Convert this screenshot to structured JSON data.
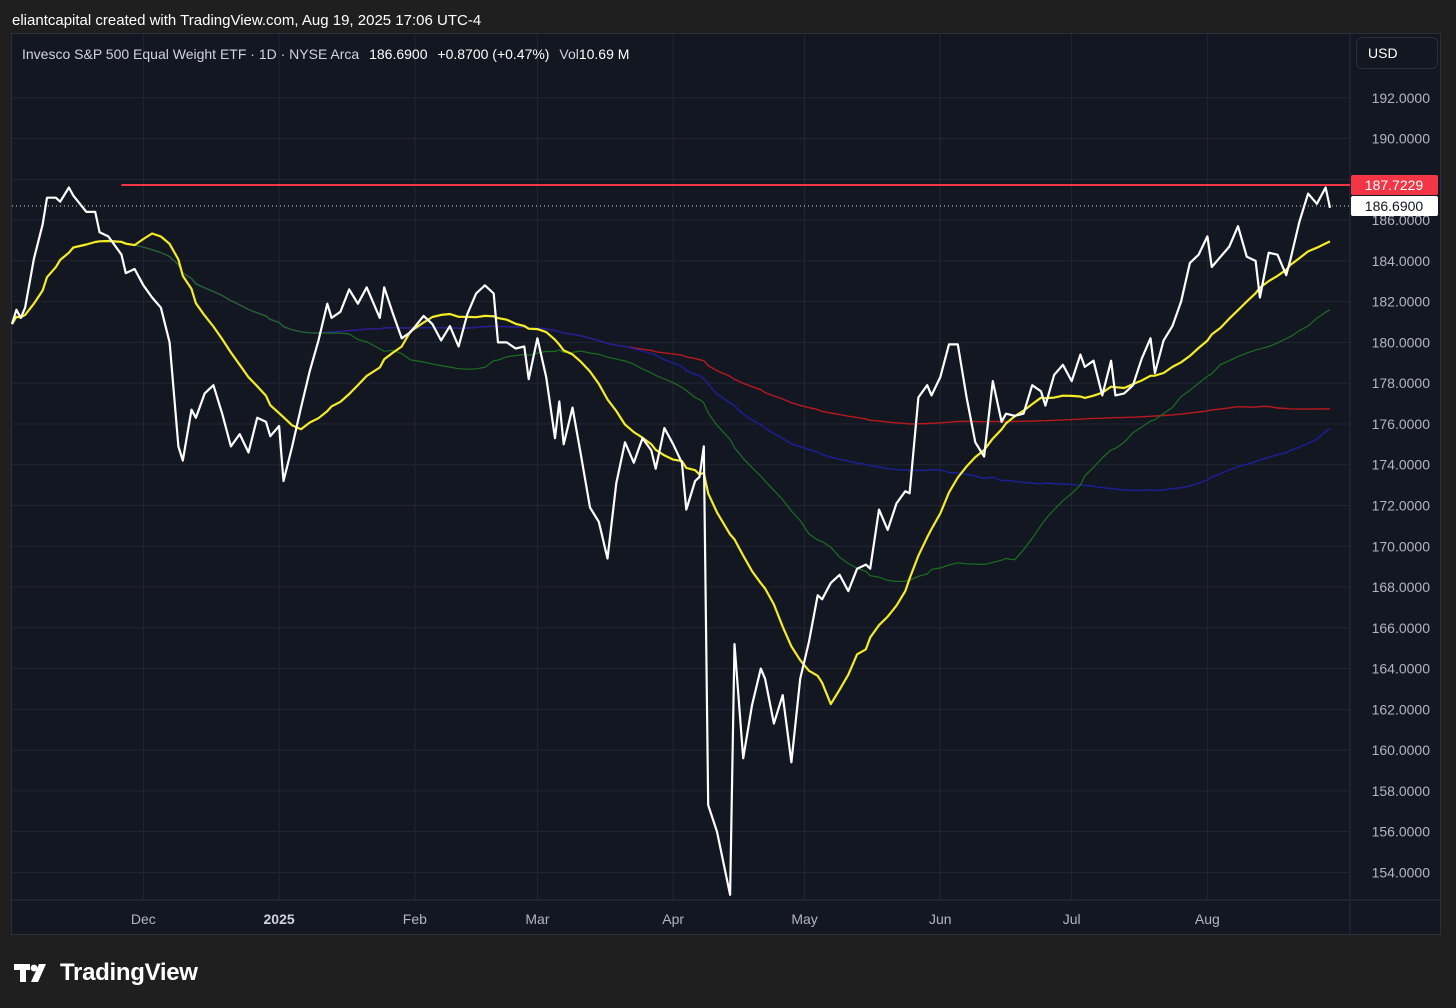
{
  "caption": "eliantcapital created with TradingView.com, Aug 19, 2025 17:06 UTC-4",
  "legend": {
    "symbol": "Invesco S&P 500 Equal Weight ETF · 1D · NYSE Arca",
    "price": "186.6900",
    "change": "+0.8700 (+0.47%)",
    "vol_label": "Vol",
    "vol_value": "10.69 M"
  },
  "currency_button": "USD",
  "brand": "TradingView",
  "colors": {
    "price": "#ffffff",
    "sma20": "#f5ec25",
    "sma50": "#1b6e20",
    "sma100": "#1b1f9a",
    "sma200": "#b8191c",
    "resistance": "#f23645",
    "background": "#131722",
    "grid": "#232632"
  },
  "chart_data": {
    "type": "line",
    "ylim": [
      152.5,
      194.0
    ],
    "y_ticks": [
      "192.0000",
      "190.0000",
      "188.0000",
      "186.0000",
      "184.0000",
      "182.0000",
      "180.0000",
      "178.0000",
      "176.0000",
      "174.0000",
      "172.0000",
      "170.0000",
      "168.0000",
      "166.0000",
      "164.0000",
      "162.0000",
      "160.0000",
      "158.0000",
      "156.0000",
      "154.0000"
    ],
    "x_ticks": [
      {
        "label": "Dec",
        "date": "2024-12-01"
      },
      {
        "label": "2025",
        "date": "2025-01-01",
        "bold": true
      },
      {
        "label": "Feb",
        "date": "2025-02-01"
      },
      {
        "label": "Mar",
        "date": "2025-03-01"
      },
      {
        "label": "Apr",
        "date": "2025-04-01"
      },
      {
        "label": "May",
        "date": "2025-05-01"
      },
      {
        "label": "Jun",
        "date": "2025-06-01"
      },
      {
        "label": "Jul",
        "date": "2025-07-01"
      },
      {
        "label": "Aug",
        "date": "2025-08-01"
      }
    ],
    "xlim": [
      "2024-11-01",
      "2025-08-29"
    ],
    "resistance": {
      "value": 187.7229,
      "label": "187.7229",
      "from": "2024-11-26"
    },
    "last_price": {
      "value": 186.69,
      "label": "186.6900"
    },
    "series": [
      {
        "key": "price",
        "values": [
          [
            "2024-11-01",
            180.9
          ],
          [
            "2024-11-02",
            181.6
          ],
          [
            "2024-11-03",
            181.2
          ],
          [
            "2024-11-04",
            181.7
          ],
          [
            "2024-11-06",
            184.1
          ],
          [
            "2024-11-08",
            185.8
          ],
          [
            "2024-11-09",
            187.1
          ],
          [
            "2024-11-11",
            187.1
          ],
          [
            "2024-11-12",
            186.9
          ],
          [
            "2024-11-14",
            187.6
          ],
          [
            "2024-11-15",
            187.2
          ],
          [
            "2024-11-18",
            186.4
          ],
          [
            "2024-11-20",
            186.4
          ],
          [
            "2024-11-21",
            185.4
          ],
          [
            "2024-11-23",
            185.2
          ],
          [
            "2024-11-26",
            184.3
          ],
          [
            "2024-11-27",
            183.4
          ],
          [
            "2024-11-29",
            183.6
          ],
          [
            "2024-12-01",
            182.8
          ],
          [
            "2024-12-03",
            182.2
          ],
          [
            "2024-12-05",
            181.7
          ],
          [
            "2024-12-07",
            180.0
          ],
          [
            "2024-12-09",
            174.9
          ],
          [
            "2024-12-10",
            174.2
          ],
          [
            "2024-12-12",
            176.7
          ],
          [
            "2024-12-13",
            176.3
          ],
          [
            "2024-12-15",
            177.5
          ],
          [
            "2024-12-17",
            177.9
          ],
          [
            "2024-12-19",
            176.5
          ],
          [
            "2024-12-21",
            174.9
          ],
          [
            "2024-12-23",
            175.5
          ],
          [
            "2024-12-25",
            174.6
          ],
          [
            "2024-12-27",
            176.3
          ],
          [
            "2024-12-29",
            176.1
          ],
          [
            "2024-12-30",
            175.4
          ],
          [
            "2025-01-01",
            175.9
          ],
          [
            "2025-01-02",
            173.2
          ],
          [
            "2025-01-04",
            174.9
          ],
          [
            "2025-01-06",
            176.8
          ],
          [
            "2025-01-08",
            178.6
          ],
          [
            "2025-01-10",
            180.1
          ],
          [
            "2025-01-12",
            181.9
          ],
          [
            "2025-01-13",
            181.2
          ],
          [
            "2025-01-15",
            181.5
          ],
          [
            "2025-01-17",
            182.6
          ],
          [
            "2025-01-19",
            181.9
          ],
          [
            "2025-01-21",
            182.7
          ],
          [
            "2025-01-24",
            181.2
          ],
          [
            "2025-01-25",
            182.7
          ],
          [
            "2025-01-27",
            181.4
          ],
          [
            "2025-01-29",
            180.2
          ],
          [
            "2025-01-31",
            180.5
          ],
          [
            "2025-02-03",
            181.3
          ],
          [
            "2025-02-05",
            180.9
          ],
          [
            "2025-02-07",
            180.1
          ],
          [
            "2025-02-09",
            180.8
          ],
          [
            "2025-02-11",
            179.8
          ],
          [
            "2025-02-13",
            181.4
          ],
          [
            "2025-02-15",
            182.4
          ],
          [
            "2025-02-17",
            182.8
          ],
          [
            "2025-02-19",
            182.4
          ],
          [
            "2025-02-20",
            180.0
          ],
          [
            "2025-02-22",
            180.0
          ],
          [
            "2025-02-24",
            179.7
          ],
          [
            "2025-02-26",
            179.8
          ],
          [
            "2025-02-27",
            178.2
          ],
          [
            "2025-03-01",
            180.2
          ],
          [
            "2025-03-03",
            178.3
          ],
          [
            "2025-03-05",
            175.3
          ],
          [
            "2025-03-06",
            177.1
          ],
          [
            "2025-03-07",
            175.0
          ],
          [
            "2025-03-09",
            176.8
          ],
          [
            "2025-03-11",
            174.4
          ],
          [
            "2025-03-13",
            171.9
          ],
          [
            "2025-03-15",
            171.2
          ],
          [
            "2025-03-17",
            169.4
          ],
          [
            "2025-03-19",
            173.1
          ],
          [
            "2025-03-21",
            175.1
          ],
          [
            "2025-03-23",
            174.1
          ],
          [
            "2025-03-25",
            175.3
          ],
          [
            "2025-03-27",
            174.7
          ],
          [
            "2025-03-28",
            173.8
          ],
          [
            "2025-03-30",
            175.8
          ],
          [
            "2025-04-01",
            175.0
          ],
          [
            "2025-04-03",
            174.1
          ],
          [
            "2025-04-04",
            171.8
          ],
          [
            "2025-04-06",
            173.2
          ],
          [
            "2025-04-07",
            173.4
          ],
          [
            "2025-04-08",
            174.9
          ],
          [
            "2025-04-09",
            157.3
          ],
          [
            "2025-04-11",
            156.0
          ],
          [
            "2025-04-14",
            152.9
          ],
          [
            "2025-04-15",
            165.2
          ],
          [
            "2025-04-17",
            159.6
          ],
          [
            "2025-04-19",
            162.2
          ],
          [
            "2025-04-21",
            164.0
          ],
          [
            "2025-04-22",
            163.5
          ],
          [
            "2025-04-24",
            161.3
          ],
          [
            "2025-04-26",
            162.7
          ],
          [
            "2025-04-28",
            159.4
          ],
          [
            "2025-04-30",
            163.5
          ],
          [
            "2025-05-02",
            165.3
          ],
          [
            "2025-05-04",
            167.6
          ],
          [
            "2025-05-05",
            167.4
          ],
          [
            "2025-05-07",
            168.2
          ],
          [
            "2025-05-09",
            168.6
          ],
          [
            "2025-05-11",
            167.8
          ],
          [
            "2025-05-13",
            168.9
          ],
          [
            "2025-05-15",
            169.1
          ],
          [
            "2025-05-16",
            168.9
          ],
          [
            "2025-05-18",
            171.8
          ],
          [
            "2025-05-20",
            170.8
          ],
          [
            "2025-05-22",
            172.1
          ],
          [
            "2025-05-24",
            172.7
          ],
          [
            "2025-05-25",
            172.6
          ],
          [
            "2025-05-27",
            177.3
          ],
          [
            "2025-05-29",
            177.9
          ],
          [
            "2025-05-30",
            177.4
          ],
          [
            "2025-06-01",
            178.3
          ],
          [
            "2025-06-03",
            179.9
          ],
          [
            "2025-06-05",
            179.9
          ],
          [
            "2025-06-07",
            177.3
          ],
          [
            "2025-06-09",
            175.1
          ],
          [
            "2025-06-11",
            174.4
          ],
          [
            "2025-06-13",
            178.1
          ],
          [
            "2025-06-15",
            176.1
          ],
          [
            "2025-06-16",
            176.5
          ],
          [
            "2025-06-18",
            176.4
          ],
          [
            "2025-06-20",
            176.5
          ],
          [
            "2025-06-22",
            177.9
          ],
          [
            "2025-06-24",
            177.6
          ],
          [
            "2025-06-25",
            176.9
          ],
          [
            "2025-06-27",
            178.4
          ],
          [
            "2025-06-29",
            178.9
          ],
          [
            "2025-07-01",
            178.1
          ],
          [
            "2025-07-03",
            179.4
          ],
          [
            "2025-07-04",
            178.8
          ],
          [
            "2025-07-06",
            179.1
          ],
          [
            "2025-07-08",
            177.4
          ],
          [
            "2025-07-10",
            179.1
          ],
          [
            "2025-07-11",
            177.4
          ],
          [
            "2025-07-13",
            177.5
          ],
          [
            "2025-07-15",
            177.9
          ],
          [
            "2025-07-17",
            179.2
          ],
          [
            "2025-07-19",
            180.2
          ],
          [
            "2025-07-20",
            178.5
          ],
          [
            "2025-07-22",
            180.1
          ],
          [
            "2025-07-24",
            180.8
          ],
          [
            "2025-07-26",
            182.0
          ],
          [
            "2025-07-28",
            183.9
          ],
          [
            "2025-07-30",
            184.3
          ],
          [
            "2025-08-01",
            185.2
          ],
          [
            "2025-08-02",
            183.7
          ],
          [
            "2025-08-04",
            184.2
          ],
          [
            "2025-08-06",
            184.7
          ],
          [
            "2025-08-08",
            185.7
          ],
          [
            "2025-08-10",
            184.2
          ],
          [
            "2025-08-12",
            184.0
          ],
          [
            "2025-08-13",
            182.2
          ],
          [
            "2025-08-15",
            184.4
          ],
          [
            "2025-08-17",
            184.3
          ],
          [
            "2025-08-19",
            183.3
          ],
          [
            "2025-08-20",
            184.1
          ],
          [
            "2025-08-22",
            185.9
          ],
          [
            "2025-08-24",
            187.3
          ],
          [
            "2025-08-26",
            186.8
          ],
          [
            "2025-08-28",
            187.6
          ],
          [
            "2025-08-29",
            186.6
          ]
        ]
      }
    ]
  }
}
